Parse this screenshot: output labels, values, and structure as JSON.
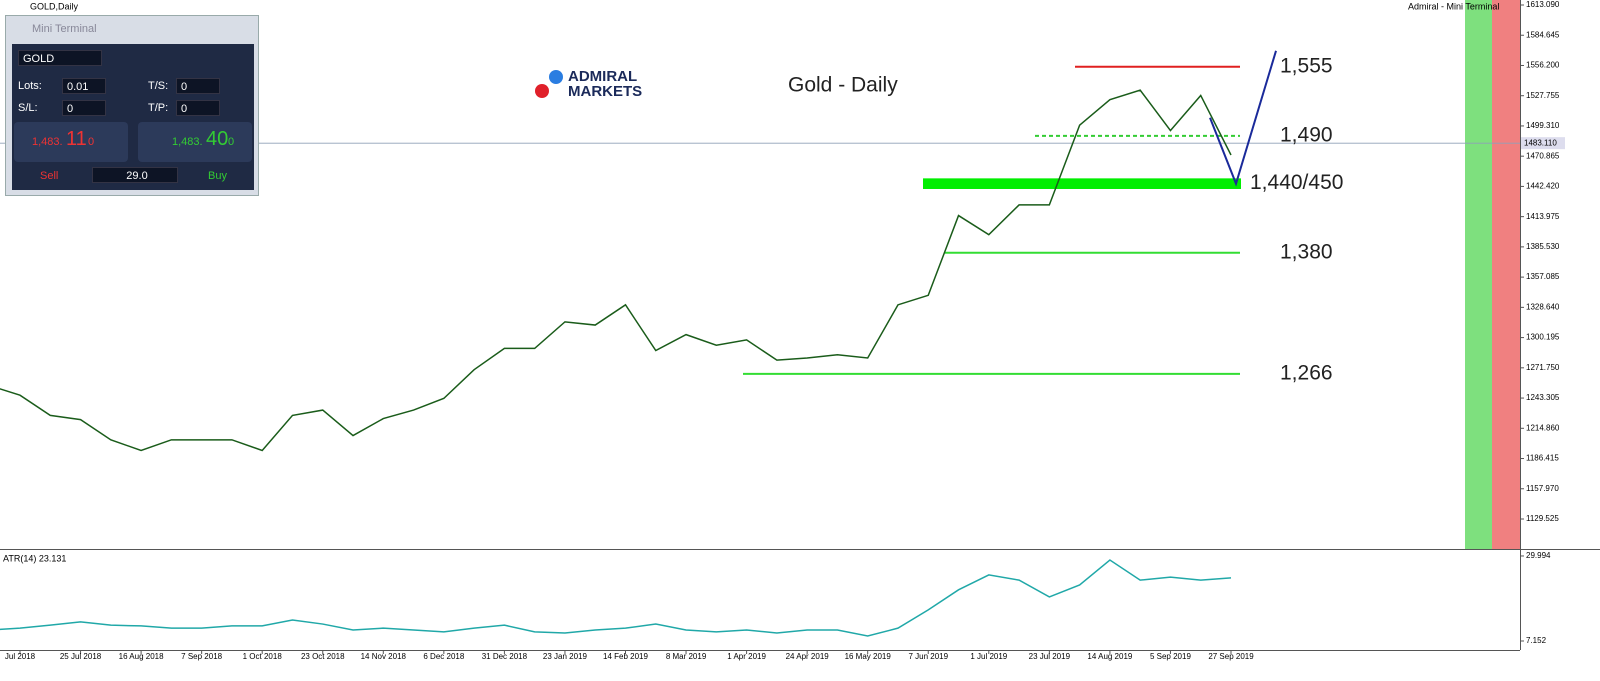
{
  "window": {
    "title": "GOLD,Daily",
    "right_label": "Admiral - Mini Terminal"
  },
  "mini_terminal": {
    "title": "Mini Terminal",
    "symbol": "GOLD",
    "lots_label": "Lots:",
    "lots": "0.01",
    "ts_label": "T/S:",
    "ts": "0",
    "sl_label": "S/L:",
    "sl": "0",
    "tp_label": "T/P:",
    "tp": "0",
    "sell_price_main": "1,483.",
    "sell_price_big": "11",
    "sell_price_small": "0",
    "buy_price_main": "1,483.",
    "buy_price_big": "40",
    "buy_price_small": "0",
    "sell": "Sell",
    "spread": "29.0",
    "buy": "Buy"
  },
  "logo": [
    "ADMIRAL",
    "MARKETS"
  ],
  "chart_data": [
    {
      "type": "line",
      "title": "Gold - Daily",
      "color": "#1a5c1a",
      "categories": [
        null,
        "Jul 2018",
        null,
        "25 Jul 2018",
        null,
        "16 Aug 2018",
        null,
        "7 Sep 2018",
        null,
        "1 Oct 2018",
        null,
        "23 Oct 2018",
        null,
        "14 Nov 2018",
        null,
        "6 Dec 2018",
        null,
        "31 Dec 2018",
        null,
        "23 Jan 2019",
        null,
        "14 Feb 2019",
        null,
        "8 Mar 2019",
        null,
        "1 Apr 2019",
        null,
        "24 Apr 2019",
        null,
        "16 May 2019",
        null,
        "7 Jun 2019",
        null,
        "1 Jul 2019",
        null,
        "23 Jul 2019",
        null,
        "14 Aug 2019",
        null,
        "5 Sep 2019",
        null,
        "27 Sep 2019"
      ],
      "values": [
        1255,
        1246,
        1227,
        1223,
        1204,
        1194,
        1204,
        1204,
        1204,
        1194,
        1227,
        1232,
        1208,
        1224,
        1232,
        1243,
        1270,
        1290,
        1290,
        1315,
        1312,
        1331,
        1288,
        1303,
        1293,
        1298,
        1279,
        1281,
        1284,
        1281,
        1331,
        1340,
        1415,
        1397,
        1425,
        1425,
        1500,
        1524,
        1533,
        1495,
        1528,
        1472
      ],
      "ylim": [
        1101.3,
        1617.8
      ],
      "yticks": [
        {
          "value": 1613.09,
          "label": "1613.090"
        },
        1584.645,
        {
          "value": 1556.2,
          "label": "1556.200"
        },
        1527.755,
        {
          "value": 1499.31,
          "label": "1499.310"
        },
        1470.865,
        {
          "value": 1442.42,
          "label": "1442.420"
        },
        1413.975,
        {
          "value": 1385.53,
          "label": "1385.530"
        },
        1357.085,
        {
          "value": 1328.64,
          "label": "1328.640"
        },
        1300.195,
        {
          "value": 1271.75,
          "label": "1271.750"
        },
        1243.305,
        {
          "value": 1214.86,
          "label": "1214.860"
        },
        1186.415,
        {
          "value": 1157.97,
          "label": "1157.970"
        },
        1129.525
      ],
      "current_price": {
        "value": 1483.11,
        "label": "1483.110"
      },
      "levels": [
        {
          "label": "1,555",
          "value": 1555,
          "color": "#e02020"
        },
        {
          "label": "1,490",
          "value": 1490,
          "color": "#33cc33"
        },
        {
          "label": "1,380",
          "value": 1380,
          "color": "#33dd33"
        },
        {
          "label": "1,266",
          "value": 1266,
          "color": "#33dd33"
        }
      ],
      "band": {
        "label": "1,440/450",
        "from": 1440,
        "to": 1450,
        "color": "#00ee00"
      },
      "projection": {
        "color": "#1a2a9a",
        "values": [
          1507,
          1445,
          1570
        ]
      }
    },
    {
      "type": "line",
      "title": "ATR(14) 23.131",
      "color": "#20a8a8",
      "values": [
        10.1,
        10.6,
        11.4,
        12.3,
        11.4,
        11.2,
        10.6,
        10.6,
        11.2,
        11.2,
        12.8,
        11.7,
        10.1,
        10.6,
        10.1,
        9.6,
        10.6,
        11.4,
        9.6,
        9.3,
        10.1,
        10.6,
        11.7,
        10.1,
        9.6,
        10.1,
        9.3,
        10.1,
        10.1,
        8.5,
        10.6,
        15.5,
        20.9,
        24.9,
        23.5,
        19.0,
        22.2,
        28.9,
        23.5,
        24.3,
        23.5,
        24.1
      ],
      "ylim": [
        4.73,
        31.6
      ],
      "yticks": [
        29.994,
        7.152
      ]
    }
  ]
}
